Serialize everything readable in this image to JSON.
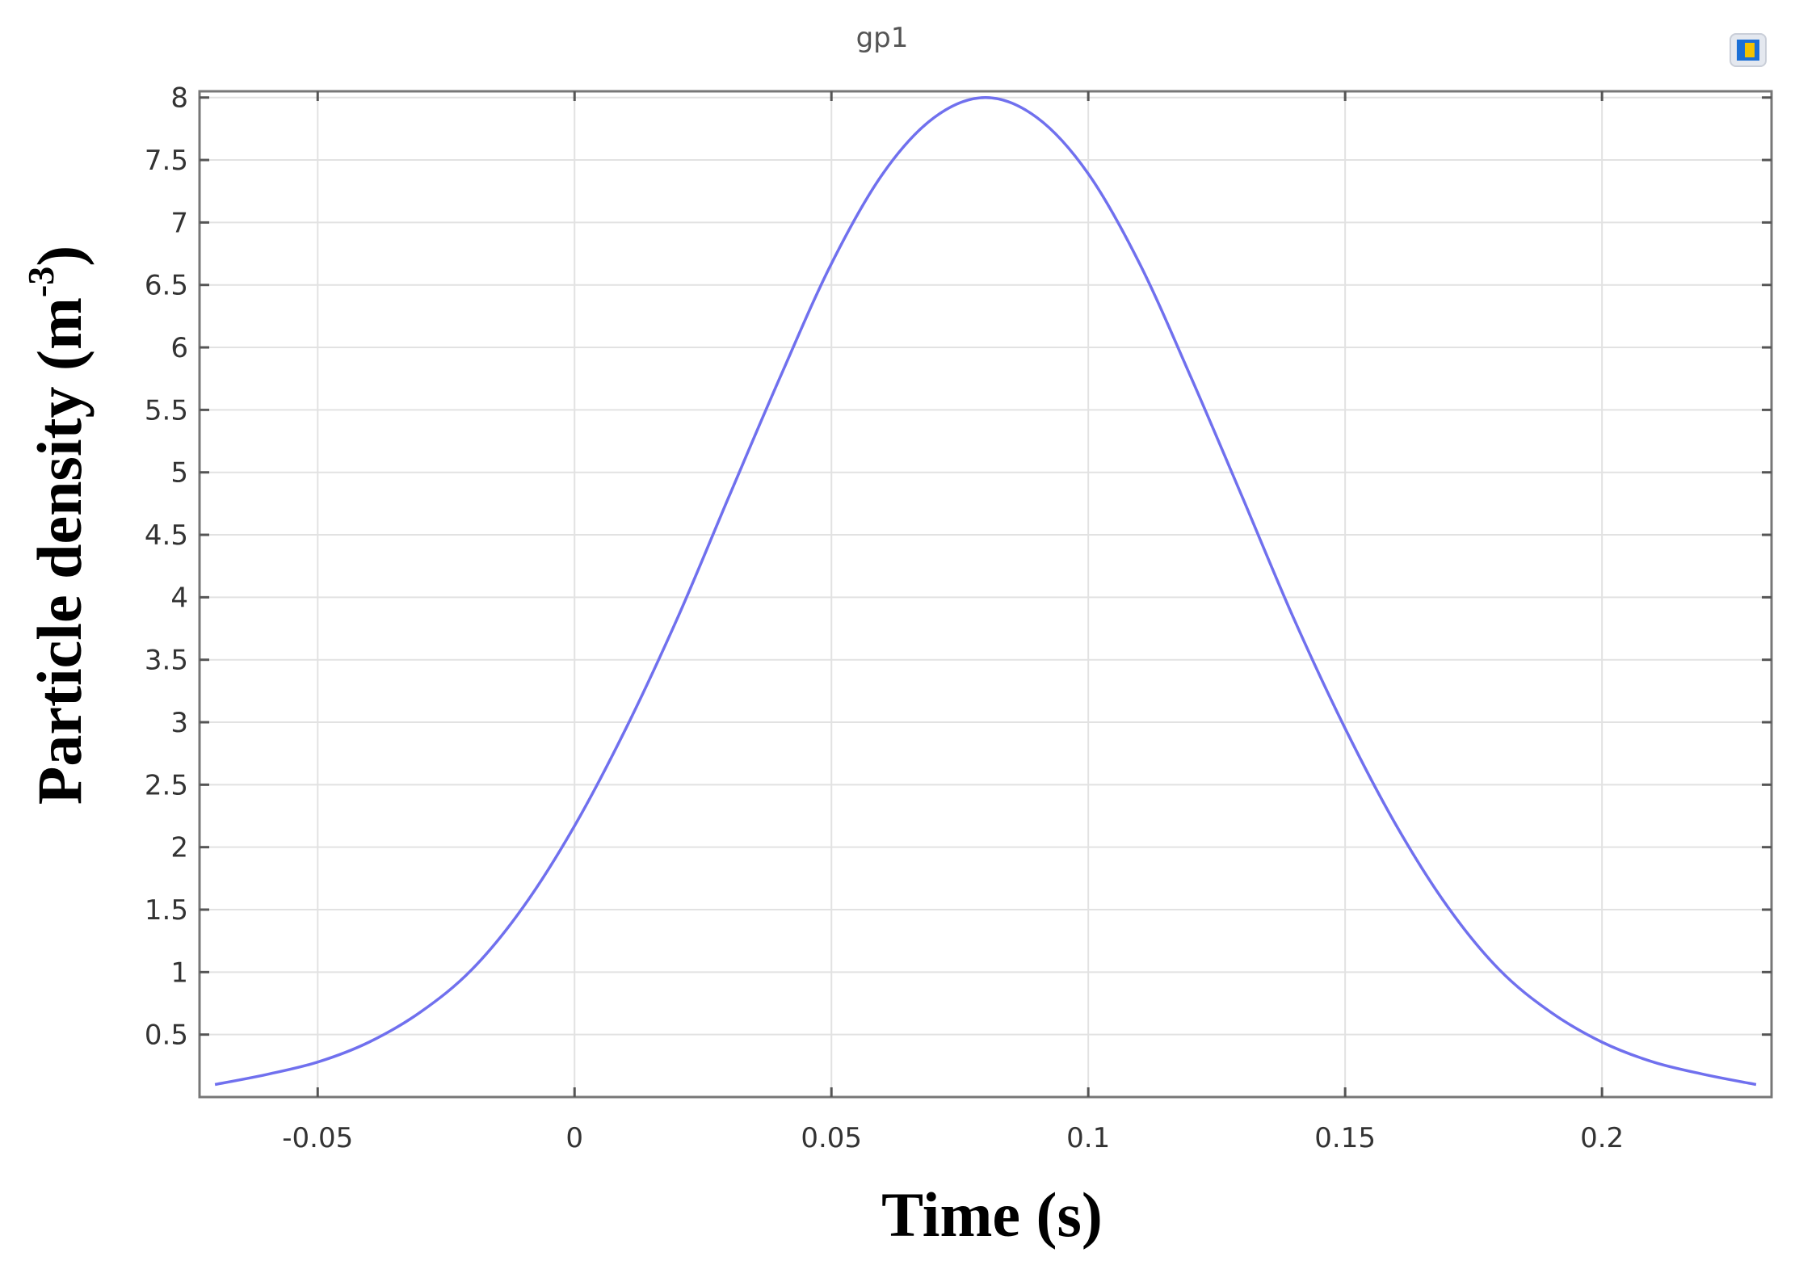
{
  "chart_data": {
    "type": "line",
    "title": "gp1",
    "xlabel": "Time (s)",
    "ylabel": "Particle density (m",
    "ylabel_exponent": "-3",
    "ylabel_close": ")",
    "xlim": [
      -0.073,
      0.233
    ],
    "ylim": [
      0,
      8.05
    ],
    "xticks": [
      -0.05,
      0,
      0.05,
      0.1,
      0.15,
      0.2
    ],
    "xtick_labels": [
      "-0.05",
      "0",
      "0.05",
      "0.1",
      "0.15",
      "0.2"
    ],
    "yticks": [
      0.5,
      1,
      1.5,
      2,
      2.5,
      3,
      3.5,
      4,
      4.5,
      5,
      5.5,
      6,
      6.5,
      7,
      7.5,
      8
    ],
    "ytick_labels": [
      "0.5",
      "1",
      "1.5",
      "2",
      "2.5",
      "3",
      "3.5",
      "4",
      "4.5",
      "5",
      "5.5",
      "6",
      "6.5",
      "7",
      "7.5",
      "8"
    ],
    "grid": true,
    "legend": "none",
    "series": [
      {
        "color": "#7070ee",
        "x": [
          -0.07,
          -0.06,
          -0.05,
          -0.04,
          -0.03,
          -0.02,
          -0.01,
          0.0,
          0.01,
          0.02,
          0.03,
          0.04,
          0.05,
          0.06,
          0.07,
          0.08,
          0.09,
          0.1,
          0.11,
          0.12,
          0.13,
          0.14,
          0.15,
          0.16,
          0.17,
          0.18,
          0.19,
          0.2,
          0.21,
          0.22,
          0.23
        ],
        "y": [
          0.1,
          0.18,
          0.28,
          0.44,
          0.68,
          1.02,
          1.52,
          2.17,
          2.95,
          3.83,
          4.8,
          5.76,
          6.67,
          7.39,
          7.84,
          8.0,
          7.84,
          7.39,
          6.67,
          5.76,
          4.8,
          3.83,
          2.95,
          2.17,
          1.52,
          1.02,
          0.68,
          0.44,
          0.28,
          0.18,
          0.1
        ]
      }
    ]
  },
  "icon": "colorbar-icon"
}
